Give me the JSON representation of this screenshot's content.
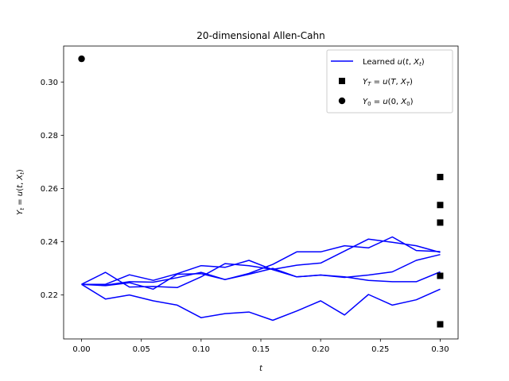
{
  "chart_data": {
    "type": "line",
    "title": "20-dimensional Allen-Cahn",
    "xlabel": "t",
    "ylabel": "Y_t = u(t, X_t)",
    "xlim": [
      -0.015,
      0.315
    ],
    "ylim": [
      0.2035,
      0.3135
    ],
    "xticks": [
      0.0,
      0.05,
      0.1,
      0.15,
      0.2,
      0.25,
      0.3
    ],
    "xtick_labels": [
      "0.00",
      "0.05",
      "0.10",
      "0.15",
      "0.20",
      "0.25",
      "0.30"
    ],
    "yticks": [
      0.22,
      0.24,
      0.26,
      0.28,
      0.3
    ],
    "ytick_labels": [
      "0.22",
      "0.24",
      "0.26",
      "0.28",
      "0.30"
    ],
    "legend_position": "top-right",
    "colors": {
      "line": "#0000ff",
      "marker": "#000000"
    },
    "legend": [
      {
        "label": "Learned u(t, X_t)",
        "marker": "line"
      },
      {
        "label": "Y_T = u(T, X_T)",
        "marker": "square"
      },
      {
        "label": "Y_0 = u(0, X_0)",
        "marker": "circle"
      }
    ],
    "x": [
      0.0,
      0.02,
      0.04,
      0.06,
      0.08,
      0.1,
      0.12,
      0.14,
      0.16,
      0.18,
      0.2,
      0.22,
      0.24,
      0.26,
      0.28,
      0.3
    ],
    "series": [
      {
        "values": [
          0.224,
          0.2185,
          0.22,
          0.2178,
          0.2162,
          0.2115,
          0.213,
          0.2136,
          0.2105,
          0.214,
          0.2178,
          0.2125,
          0.2202,
          0.2162,
          0.2182,
          0.2222
        ]
      },
      {
        "values": [
          0.224,
          0.2237,
          0.225,
          0.2248,
          0.2265,
          0.2285,
          0.2258,
          0.2278,
          0.23,
          0.2268,
          0.2275,
          0.2268,
          0.2255,
          0.225,
          0.225,
          0.2287
        ]
      },
      {
        "values": [
          0.224,
          0.2285,
          0.223,
          0.2232,
          0.2228,
          0.2268,
          0.2318,
          0.231,
          0.2296,
          0.2312,
          0.232,
          0.2365,
          0.241,
          0.2398,
          0.2385,
          0.236
        ]
      },
      {
        "values": [
          0.224,
          0.224,
          0.2276,
          0.2255,
          0.228,
          0.231,
          0.2304,
          0.233,
          0.2295,
          0.2268,
          0.2275,
          0.2266,
          0.2275,
          0.2287,
          0.233,
          0.2352
        ]
      },
      {
        "values": [
          0.224,
          0.2235,
          0.2246,
          0.2222,
          0.2278,
          0.228,
          0.2258,
          0.2281,
          0.2315,
          0.2362,
          0.2362,
          0.2385,
          0.2377,
          0.2418,
          0.2367,
          0.2363
        ]
      }
    ],
    "terminal_points": {
      "x": 0.3,
      "values": [
        0.2643,
        0.2538,
        0.2472,
        0.2272,
        0.209
      ]
    },
    "initial_point": {
      "x": 0.0,
      "value": 0.3087
    }
  }
}
